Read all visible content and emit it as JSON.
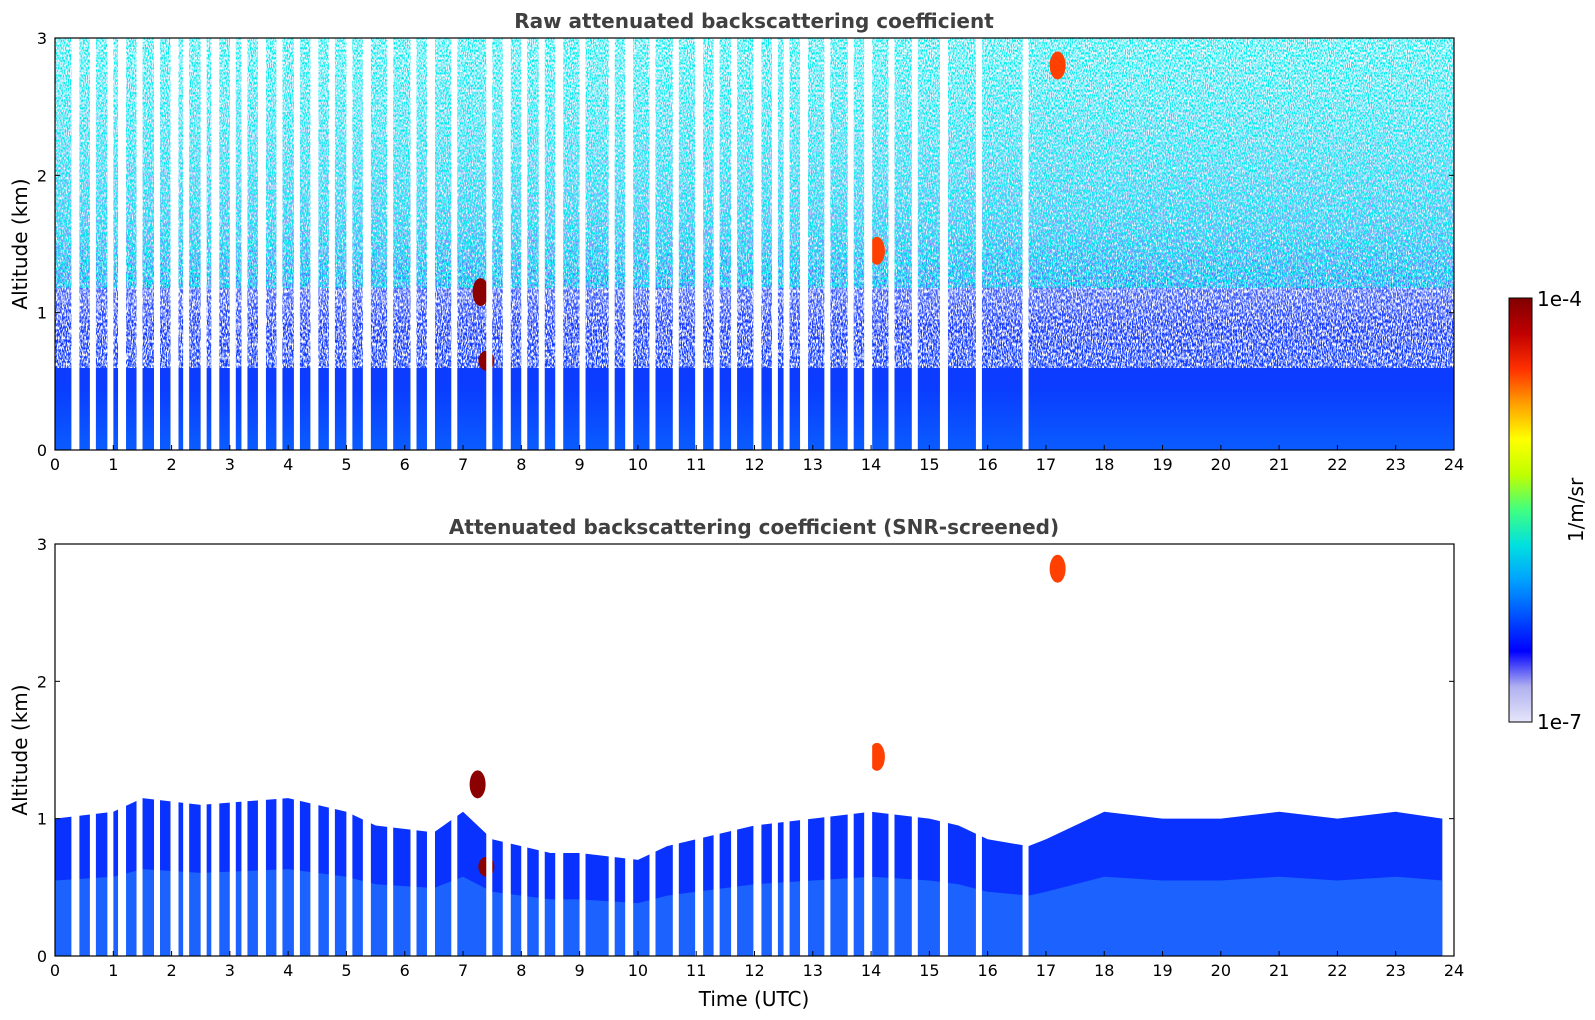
{
  "chart_data": [
    {
      "type": "heatmap",
      "title": "Raw attenuated backscattering coefficient",
      "xlabel": "",
      "ylabel": "Altitude (km)",
      "xlim": [
        0,
        24
      ],
      "ylim": [
        0,
        3
      ],
      "xticks": [
        "0",
        "1",
        "2",
        "3",
        "4",
        "5",
        "6",
        "7",
        "8",
        "9",
        "10",
        "11",
        "12",
        "13",
        "14",
        "15",
        "16",
        "17",
        "18",
        "19",
        "20",
        "21",
        "22",
        "23",
        "24"
      ],
      "yticks": [
        "0",
        "1",
        "2",
        "3"
      ],
      "data_gaps_hours": [
        0.35,
        0.65,
        0.95,
        1.15,
        1.45,
        1.75,
        2.05,
        2.25,
        2.55,
        2.75,
        3.05,
        3.25,
        3.55,
        3.85,
        4.15,
        4.45,
        4.75,
        5.05,
        5.35,
        5.75,
        6.15,
        6.45,
        6.85,
        7.45,
        7.75,
        8.05,
        8.35,
        8.65,
        9.05,
        9.55,
        9.85,
        10.25,
        10.65,
        11.05,
        11.35,
        11.65,
        12.05,
        12.35,
        12.55,
        12.85,
        13.25,
        13.65,
        13.95,
        14.35,
        14.75,
        15.25,
        15.85,
        16.65
      ],
      "features": [
        {
          "time": 7.4,
          "alt_km": 0.65,
          "level": "max"
        },
        {
          "time": 7.3,
          "alt_km": 1.15,
          "level": "max"
        },
        {
          "time": 14.1,
          "alt_km": 1.45,
          "level": "high"
        },
        {
          "time": 17.2,
          "alt_km": 2.8,
          "level": "high"
        }
      ]
    },
    {
      "type": "heatmap",
      "title": "Attenuated backscattering coefficient (SNR-screened)",
      "xlabel": "Time (UTC)",
      "ylabel": "Altitude (km)",
      "xlim": [
        0,
        24
      ],
      "ylim": [
        0,
        3
      ],
      "xticks": [
        "0",
        "1",
        "2",
        "3",
        "4",
        "5",
        "6",
        "7",
        "8",
        "9",
        "10",
        "11",
        "12",
        "13",
        "14",
        "15",
        "16",
        "17",
        "18",
        "19",
        "20",
        "21",
        "22",
        "23",
        "24"
      ],
      "yticks": [
        "0",
        "1",
        "2",
        "3"
      ],
      "layer_top_km": [
        [
          0,
          1.0
        ],
        [
          1,
          1.05
        ],
        [
          1.5,
          1.15
        ],
        [
          2.5,
          1.1
        ],
        [
          4,
          1.15
        ],
        [
          5,
          1.05
        ],
        [
          5.5,
          0.95
        ],
        [
          6.5,
          0.9
        ],
        [
          7,
          1.05
        ],
        [
          7.5,
          0.85
        ],
        [
          8,
          0.8
        ],
        [
          8.5,
          0.75
        ],
        [
          9,
          0.75
        ],
        [
          10,
          0.7
        ],
        [
          10.5,
          0.8
        ],
        [
          11,
          0.85
        ],
        [
          12,
          0.95
        ],
        [
          13,
          1.0
        ],
        [
          14,
          1.05
        ],
        [
          15,
          1.0
        ],
        [
          15.5,
          0.95
        ],
        [
          16,
          0.85
        ],
        [
          16.7,
          0.8
        ],
        [
          17,
          0.85
        ],
        [
          18,
          1.05
        ],
        [
          19,
          1.0
        ],
        [
          20,
          1.0
        ],
        [
          21,
          1.05
        ],
        [
          22,
          1.0
        ],
        [
          23,
          1.05
        ],
        [
          23.8,
          1.0
        ]
      ],
      "features": [
        {
          "time": 7.4,
          "alt_km": 0.65,
          "level": "max"
        },
        {
          "time": 7.25,
          "alt_km": 1.25,
          "level": "max"
        },
        {
          "time": 14.1,
          "alt_km": 1.45,
          "level": "high"
        },
        {
          "time": 17.2,
          "alt_km": 2.82,
          "level": "high"
        }
      ]
    }
  ],
  "colorbar": {
    "label": "1/m/sr",
    "max_label": "1e-4",
    "min_label": "1e-7",
    "colors": [
      "#e6e6fa",
      "#b0b0f0",
      "#0000ff",
      "#0050ff",
      "#00a0ff",
      "#00e0e0",
      "#40ff80",
      "#c0ff00",
      "#ffff00",
      "#ffa000",
      "#ff3000",
      "#c00000",
      "#800000"
    ]
  }
}
